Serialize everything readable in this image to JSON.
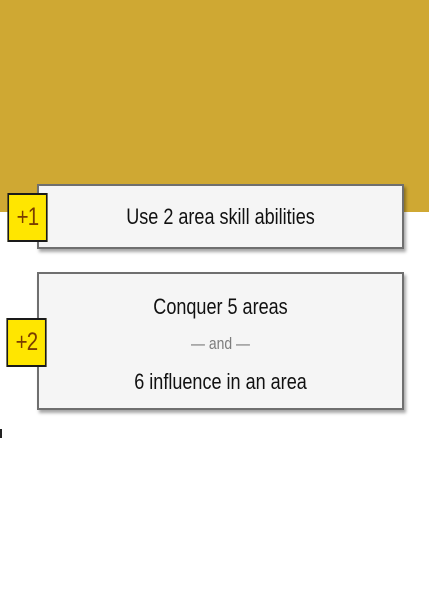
{
  "colors": {
    "header_band": "#CFA833",
    "badge_fill": "#FFE600",
    "badge_text": "#7a3d00",
    "card_fill": "#f5f5f5",
    "card_border": "#6f6f6f",
    "separator_text": "#7c7c7c"
  },
  "objectives": [
    {
      "badge": "+1",
      "text": "Use 2 area skill abilities"
    },
    {
      "badge": "+2",
      "line_1": "Conquer 5 areas",
      "separator": "— and —",
      "line_2": "6 influence in an area"
    }
  ]
}
